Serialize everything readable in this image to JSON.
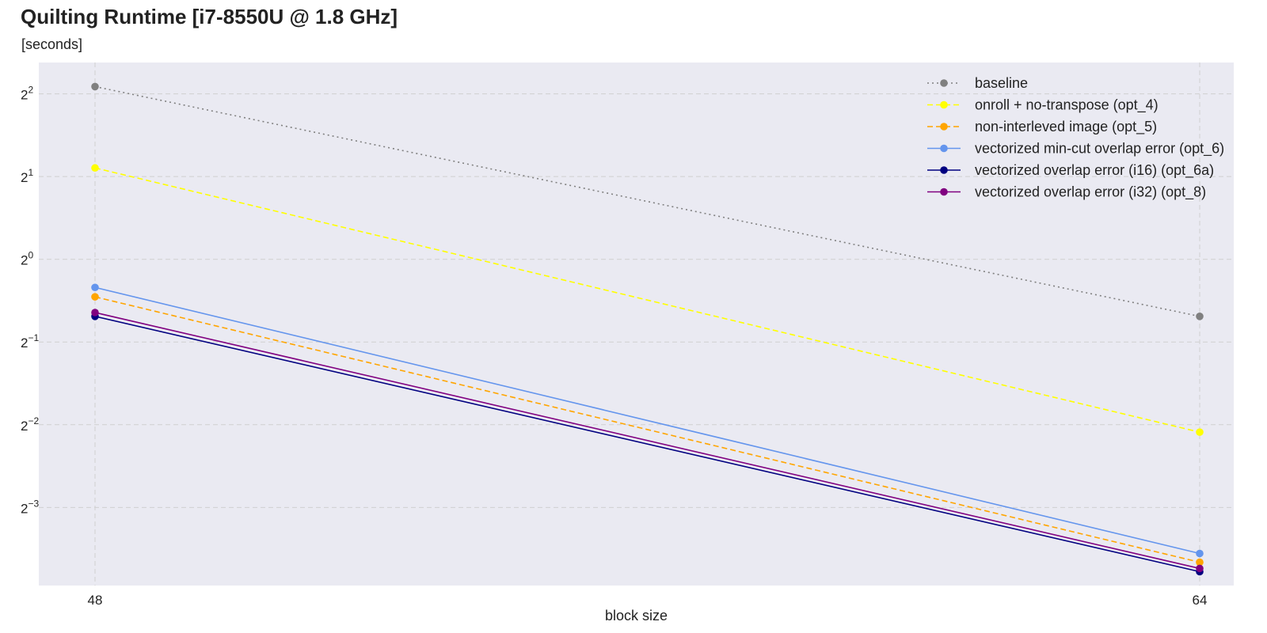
{
  "chart_data": {
    "type": "line",
    "title": "Quilting Runtime [i7-8550U @ 1.8 GHz]",
    "subtitle": "[seconds]",
    "xlabel": "block size",
    "ylabel": "",
    "x": [
      48,
      64
    ],
    "x_ticks": [
      "48",
      "64"
    ],
    "yscale": "log2",
    "ylim": [
      0.065,
      5.2
    ],
    "y_ticks": [
      {
        "base": "2",
        "exp": "2",
        "value": 4
      },
      {
        "base": "2",
        "exp": "1",
        "value": 2
      },
      {
        "base": "2",
        "exp": "0",
        "value": 1
      },
      {
        "base": "2",
        "exp": "−1",
        "value": 0.5
      },
      {
        "base": "2",
        "exp": "−2",
        "value": 0.25
      },
      {
        "base": "2",
        "exp": "−3",
        "value": 0.125
      }
    ],
    "grid": true,
    "legend_position": "top-right",
    "series": [
      {
        "name": "baseline",
        "values": [
          4.25,
          0.62
        ],
        "color": "#808080",
        "dash": "dotted"
      },
      {
        "name": "onroll + no-transpose (opt_4)",
        "values": [
          2.15,
          0.235
        ],
        "color": "#ffff00",
        "dash": "dashed"
      },
      {
        "name": "non-interleved image (opt_5)",
        "values": [
          0.73,
          0.079
        ],
        "color": "#ffa500",
        "dash": "dashed"
      },
      {
        "name": "vectorized min-cut overlap error (opt_6)",
        "values": [
          0.79,
          0.085
        ],
        "color": "#6495ed",
        "dash": "solid"
      },
      {
        "name": "vectorized overlap error (i16) (opt_6a)",
        "values": [
          0.62,
          0.073
        ],
        "color": "#000080",
        "dash": "solid"
      },
      {
        "name": "vectorized overlap error (i32) (opt_8)",
        "values": [
          0.64,
          0.075
        ],
        "color": "#800080",
        "dash": "solid"
      }
    ],
    "colors": {
      "plot_background": "#eaeaf2",
      "grid": "#d0d0d0"
    }
  }
}
